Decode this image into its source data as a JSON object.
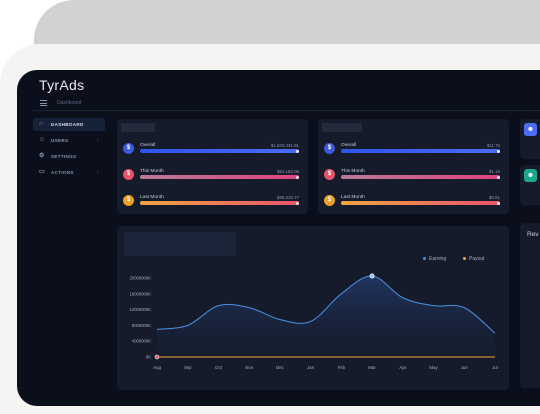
{
  "app": {
    "logo": "TyrAds"
  },
  "topbar": {
    "breadcrumb": "Dashboard"
  },
  "sidebar": {
    "items": [
      {
        "label": "DASHBOARD",
        "icon": "home-icon",
        "active": true,
        "chevron": false
      },
      {
        "label": "USERS",
        "icon": "users-icon",
        "active": false,
        "chevron": true
      },
      {
        "label": "SETTINGS",
        "icon": "gear-icon",
        "active": false,
        "chevron": false
      },
      {
        "label": "ACTIONS",
        "icon": "monitor-icon",
        "active": false,
        "chevron": true
      }
    ]
  },
  "earnings": {
    "rows": [
      {
        "label": "Overall",
        "value": "$1,503,431.91",
        "progress": 1.0,
        "coin_color": "#3b5bdb",
        "bar_from": "#2f54eb",
        "bar_to": "#4a6cf7"
      },
      {
        "label": "This Month",
        "value": "$64,182.08",
        "progress": 1.0,
        "coin_color": "#e8536b",
        "bar_from": "#b97a95",
        "bar_to": "#e0457b"
      },
      {
        "label": "Last Month",
        "value": "$38,616.77",
        "progress": 1.0,
        "coin_color": "#f0a020",
        "bar_from": "#f2a541",
        "bar_to": "#e8536b"
      }
    ]
  },
  "payouts": {
    "rows": [
      {
        "label": "Overall",
        "value": "$11.75",
        "progress": 1.0,
        "coin_color": "#3b5bdb",
        "bar_from": "#2f54eb",
        "bar_to": "#4a6cf7"
      },
      {
        "label": "This Month",
        "value": "$1.16",
        "progress": 1.0,
        "coin_color": "#e8536b",
        "bar_from": "#b97a95",
        "bar_to": "#e0457b"
      },
      {
        "label": "Last Month",
        "value": "$0.61",
        "progress": 1.0,
        "coin_color": "#f0a020",
        "bar_from": "#f2a541",
        "bar_to": "#e8536b"
      }
    ]
  },
  "right_panel": {
    "revenue_title": "Rev"
  },
  "chart_data": {
    "type": "area",
    "categories": [
      "Aug",
      "Sep",
      "Oct",
      "Nov",
      "Dec",
      "Jan",
      "Feb",
      "Mar",
      "Apr",
      "May",
      "Jun",
      "Jul"
    ],
    "series": [
      {
        "name": "Earning",
        "color": "#4a90e2",
        "values": [
          7000000,
          8000000,
          13000000,
          12500000,
          9500000,
          9000000,
          16000000,
          20500000,
          15000000,
          13000000,
          12500000,
          6000000
        ]
      },
      {
        "name": "Payout",
        "color": "#f2a541",
        "values": [
          0,
          0,
          0,
          0,
          0,
          0,
          0,
          0,
          0,
          0,
          0,
          0
        ]
      }
    ],
    "y_ticks": [
      "0K",
      "4000000K",
      "8000000K",
      "12000000K",
      "16000000K",
      "20000000K"
    ],
    "y_tick_values": [
      0,
      4000000,
      8000000,
      12000000,
      16000000,
      20000000
    ],
    "ylim": [
      0,
      20000000
    ],
    "legend": "top-right",
    "grid": false
  }
}
